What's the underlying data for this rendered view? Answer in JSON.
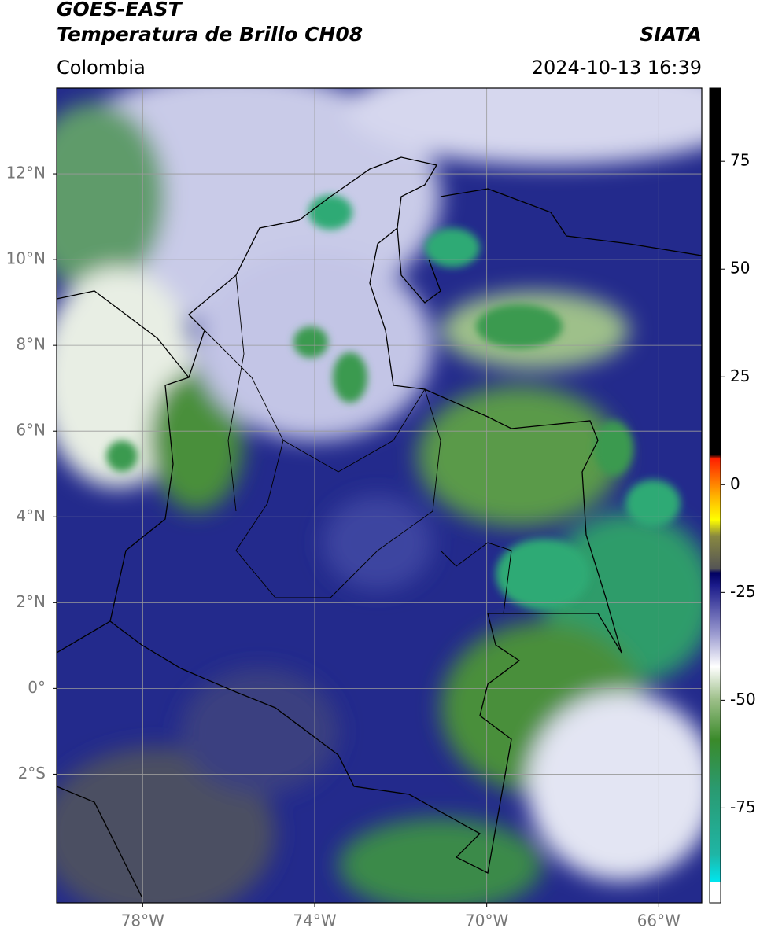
{
  "header": {
    "title": "GOES-EAST",
    "subtitle": "Temperatura de Brillo CH08",
    "source": "SIATA",
    "region": "Colombia",
    "timestamp": "2024-10-13 16:39"
  },
  "map": {
    "xlim": [
      -80,
      -65
    ],
    "ylim": [
      -5,
      14
    ],
    "xticks": [
      {
        "value": -78,
        "label": "78°W"
      },
      {
        "value": -74,
        "label": "74°W"
      },
      {
        "value": -70,
        "label": "70°W"
      },
      {
        "value": -66,
        "label": "66°W"
      }
    ],
    "yticks": [
      {
        "value": 12,
        "label": "12°N"
      },
      {
        "value": 10,
        "label": "10°N"
      },
      {
        "value": 8,
        "label": "8°N"
      },
      {
        "value": 6,
        "label": "6°N"
      },
      {
        "value": 4,
        "label": "4°N"
      },
      {
        "value": 2,
        "label": "2°N"
      },
      {
        "value": 0,
        "label": "0°"
      },
      {
        "value": -2,
        "label": "2°S"
      }
    ],
    "grid": true
  },
  "colorbar": {
    "lim": [
      -97,
      92
    ],
    "ticks": [
      75,
      50,
      25,
      0,
      -25,
      -50,
      -75
    ]
  }
}
